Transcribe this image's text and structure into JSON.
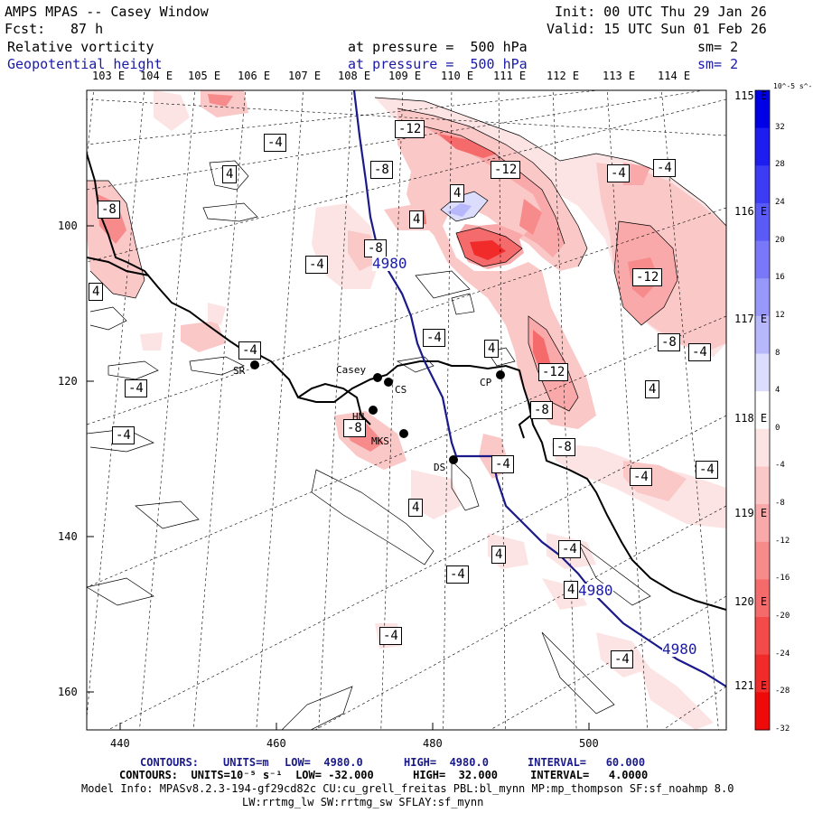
{
  "header": {
    "title": "AMPS MPAS -- Casey Window",
    "init": "Init: 00 UTC Thu 29 Jan 26",
    "fcst_label": "Fcst:",
    "fcst_value": "87 h",
    "valid": "Valid: 15 UTC Sun 01 Feb 26",
    "field1_name": "Relative vorticity",
    "field1_level": "at pressure =  500 hPa",
    "field1_sm": "sm= 2",
    "field2_name": "Geopotential height",
    "field2_level": "at pressure =  500 hPa",
    "field2_sm": "sm= 2"
  },
  "longitude_labels_top": [
    "103 E",
    "104 E",
    "105 E",
    "106 E",
    "107 E",
    "108 E",
    "109 E",
    "110 E",
    "111 E",
    "112 E",
    "113 E",
    "114 E"
  ],
  "longitude_labels_right": [
    "115 E",
    "116 E",
    "117 E",
    "118 E",
    "119 E",
    "120 E",
    "121 E"
  ],
  "x_axis_ticks": [
    "440",
    "460",
    "480",
    "500"
  ],
  "y_axis_ticks": [
    "100",
    "120",
    "140",
    "160"
  ],
  "stations": [
    {
      "id": "SR",
      "label": "SR"
    },
    {
      "id": "casey",
      "label": "Casey"
    },
    {
      "id": "CS",
      "label": "CS"
    },
    {
      "id": "CP",
      "label": "CP"
    },
    {
      "id": "HN",
      "label": "HN"
    },
    {
      "id": "MKS",
      "label": "MKS"
    },
    {
      "id": "DS",
      "label": "DS"
    }
  ],
  "contour_labels": [
    "-8",
    "-4",
    "4",
    "-12",
    "-8",
    "4",
    "-12",
    "-4",
    "-8",
    "4",
    "-4",
    "-4",
    "4",
    "-12",
    "-8",
    "-4",
    "-4",
    "4",
    "-12",
    "-8",
    "4",
    "-4",
    "-8",
    "-4",
    "-8",
    "-4",
    "-4",
    "-4",
    "-4",
    "4",
    "4",
    "-4",
    "-4",
    "4",
    "-4",
    "-4"
  ],
  "height_contour_labels": [
    "4980",
    "4980",
    "4980"
  ],
  "colorbar": {
    "units_label": "10^-5 s^-1",
    "ticks": [
      "32",
      "28",
      "24",
      "20",
      "16",
      "12",
      "8",
      "4",
      "0",
      "-4",
      "-8",
      "-12",
      "-16",
      "-20",
      "-24",
      "-28",
      "-32"
    ],
    "colors": [
      "#0000e6",
      "#1d1df0",
      "#3c3cf5",
      "#5a5af7",
      "#7878f8",
      "#9898fa",
      "#b7b7fb",
      "#dcdcfd",
      "#ffffff",
      "#fde4e4",
      "#fbc8c8",
      "#f9a9a9",
      "#f78a8a",
      "#f56a6a",
      "#f34a4a",
      "#f12a2a",
      "#ef0a0a"
    ]
  },
  "footer": {
    "line1_contours": "CONTOURS:",
    "line1_units": "UNITS=m",
    "line1_low": "LOW=  4980.0",
    "line1_high": "HIGH=  4980.0",
    "line1_interval": "INTERVAL=   60.000",
    "line2": "CONTOURS:  UNITS=10⁻⁵ s⁻¹  LOW= -32.000      HIGH=  32.000     INTERVAL=   4.0000",
    "line3": "Model Info: MPASv8.2.3-194-gf29cd82c CU:cu_grell_freitas PBL:bl_mynn MP:mp_thompson SF:sf_noahmp 8.0",
    "line4": "LW:rrtmg_lw SW:rrtmg_sw SFLAY:sf_mynn"
  },
  "colors": {
    "height_contour": "#1a1a8a",
    "coastline": "#000000",
    "label_blue": "#1a1aa8"
  }
}
